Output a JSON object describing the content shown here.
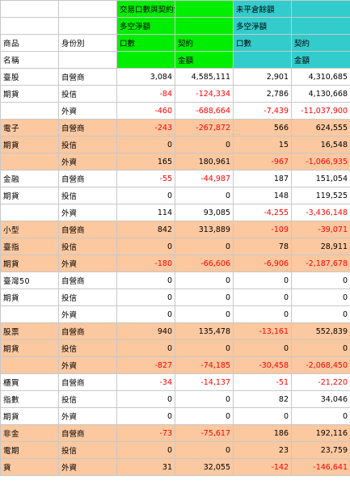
{
  "header": {
    "group_traded": "交易口數與契約金額",
    "group_open": "未平倉餘額",
    "net_label": "多空淨額",
    "col_product": "商品",
    "col_product2": "名稱",
    "col_identity": "身份別",
    "col_lots": "口數",
    "col_contract": "契約",
    "col_amount": "金額"
  },
  "rows": [
    {
      "product": "臺股",
      "identity": "自營商",
      "v": [
        "3,084",
        "4,585,111",
        "2,901",
        "4,310,685"
      ],
      "neg": [
        false,
        false,
        false,
        false
      ],
      "hl": false
    },
    {
      "product": "期貨",
      "identity": "投信",
      "v": [
        "-84",
        "-124,334",
        "2,786",
        "4,130,668"
      ],
      "neg": [
        true,
        true,
        false,
        false
      ],
      "hl": false
    },
    {
      "product": "",
      "identity": "外資",
      "v": [
        "-460",
        "-688,664",
        "-7,439",
        "-11,037,900"
      ],
      "neg": [
        true,
        true,
        true,
        true
      ],
      "hl": false
    },
    {
      "product": "電子",
      "identity": "自營商",
      "v": [
        "-243",
        "-267,872",
        "566",
        "624,555"
      ],
      "neg": [
        true,
        true,
        false,
        false
      ],
      "hl": true
    },
    {
      "product": "期貨",
      "identity": "投信",
      "v": [
        "0",
        "0",
        "15",
        "16,548"
      ],
      "neg": [
        false,
        false,
        false,
        false
      ],
      "hl": true
    },
    {
      "product": "",
      "identity": "外資",
      "v": [
        "165",
        "180,961",
        "-967",
        "-1,066,935"
      ],
      "neg": [
        false,
        false,
        true,
        true
      ],
      "hl": true
    },
    {
      "product": "金融",
      "identity": "自營商",
      "v": [
        "-55",
        "-44,987",
        "187",
        "151,054"
      ],
      "neg": [
        true,
        true,
        false,
        false
      ],
      "hl": false
    },
    {
      "product": "期貨",
      "identity": "投信",
      "v": [
        "0",
        "0",
        "148",
        "119,525"
      ],
      "neg": [
        false,
        false,
        false,
        false
      ],
      "hl": false
    },
    {
      "product": "",
      "identity": "外資",
      "v": [
        "114",
        "93,085",
        "-4,255",
        "-3,436,148"
      ],
      "neg": [
        false,
        false,
        true,
        true
      ],
      "hl": false
    },
    {
      "product": "小型",
      "identity": "自營商",
      "v": [
        "842",
        "313,889",
        "-109",
        "-39,071"
      ],
      "neg": [
        false,
        false,
        true,
        true
      ],
      "hl": true
    },
    {
      "product": "臺指",
      "identity": "投信",
      "v": [
        "0",
        "0",
        "78",
        "28,911"
      ],
      "neg": [
        false,
        false,
        false,
        false
      ],
      "hl": true
    },
    {
      "product": "期貨",
      "identity": "外資",
      "v": [
        "-180",
        "-66,606",
        "-6,906",
        "-2,187,678"
      ],
      "neg": [
        true,
        true,
        true,
        true
      ],
      "hl": true
    },
    {
      "product": "臺灣50",
      "identity": "自營商",
      "v": [
        "0",
        "0",
        "0",
        "0"
      ],
      "neg": [
        false,
        false,
        false,
        false
      ],
      "hl": false
    },
    {
      "product": "期貨",
      "identity": "投信",
      "v": [
        "0",
        "0",
        "0",
        "0"
      ],
      "neg": [
        false,
        false,
        false,
        false
      ],
      "hl": false
    },
    {
      "product": "",
      "identity": "外資",
      "v": [
        "0",
        "0",
        "0",
        "0"
      ],
      "neg": [
        false,
        false,
        false,
        false
      ],
      "hl": false
    },
    {
      "product": "股票",
      "identity": "自營商",
      "v": [
        "940",
        "135,478",
        "-13,161",
        "552,839"
      ],
      "neg": [
        false,
        false,
        true,
        false
      ],
      "hl": true
    },
    {
      "product": "期貨",
      "identity": "投信",
      "v": [
        "0",
        "0",
        "0",
        "0"
      ],
      "neg": [
        false,
        false,
        false,
        false
      ],
      "hl": true
    },
    {
      "product": "",
      "identity": "外資",
      "v": [
        "-827",
        "-74,185",
        "-30,458",
        "-2,068,450"
      ],
      "neg": [
        true,
        true,
        true,
        true
      ],
      "hl": true
    },
    {
      "product": "櫃買",
      "identity": "自營商",
      "v": [
        "-34",
        "-14,137",
        "-51",
        "-21,220"
      ],
      "neg": [
        true,
        true,
        true,
        true
      ],
      "hl": false
    },
    {
      "product": "指數",
      "identity": "投信",
      "v": [
        "0",
        "0",
        "82",
        "34,046"
      ],
      "neg": [
        false,
        false,
        false,
        false
      ],
      "hl": false
    },
    {
      "product": "期貨",
      "identity": "外資",
      "v": [
        "0",
        "0",
        "0",
        "0"
      ],
      "neg": [
        false,
        false,
        false,
        false
      ],
      "hl": false
    },
    {
      "product": "非金",
      "identity": "自營商",
      "v": [
        "-73",
        "-75,617",
        "186",
        "192,116"
      ],
      "neg": [
        true,
        true,
        false,
        false
      ],
      "hl": true
    },
    {
      "product": "電期",
      "identity": "投信",
      "v": [
        "0",
        "0",
        "23",
        "23,759"
      ],
      "neg": [
        false,
        false,
        false,
        false
      ],
      "hl": true
    },
    {
      "product": "貨",
      "identity": "外資",
      "v": [
        "31",
        "32,055",
        "-142",
        "-146,641"
      ],
      "neg": [
        false,
        false,
        true,
        true
      ],
      "hl": true
    }
  ],
  "colors": {
    "green": "#00ee00",
    "cyan": "#33cccc",
    "highlight": "#fbc8a0",
    "negative": "#ff0000"
  }
}
